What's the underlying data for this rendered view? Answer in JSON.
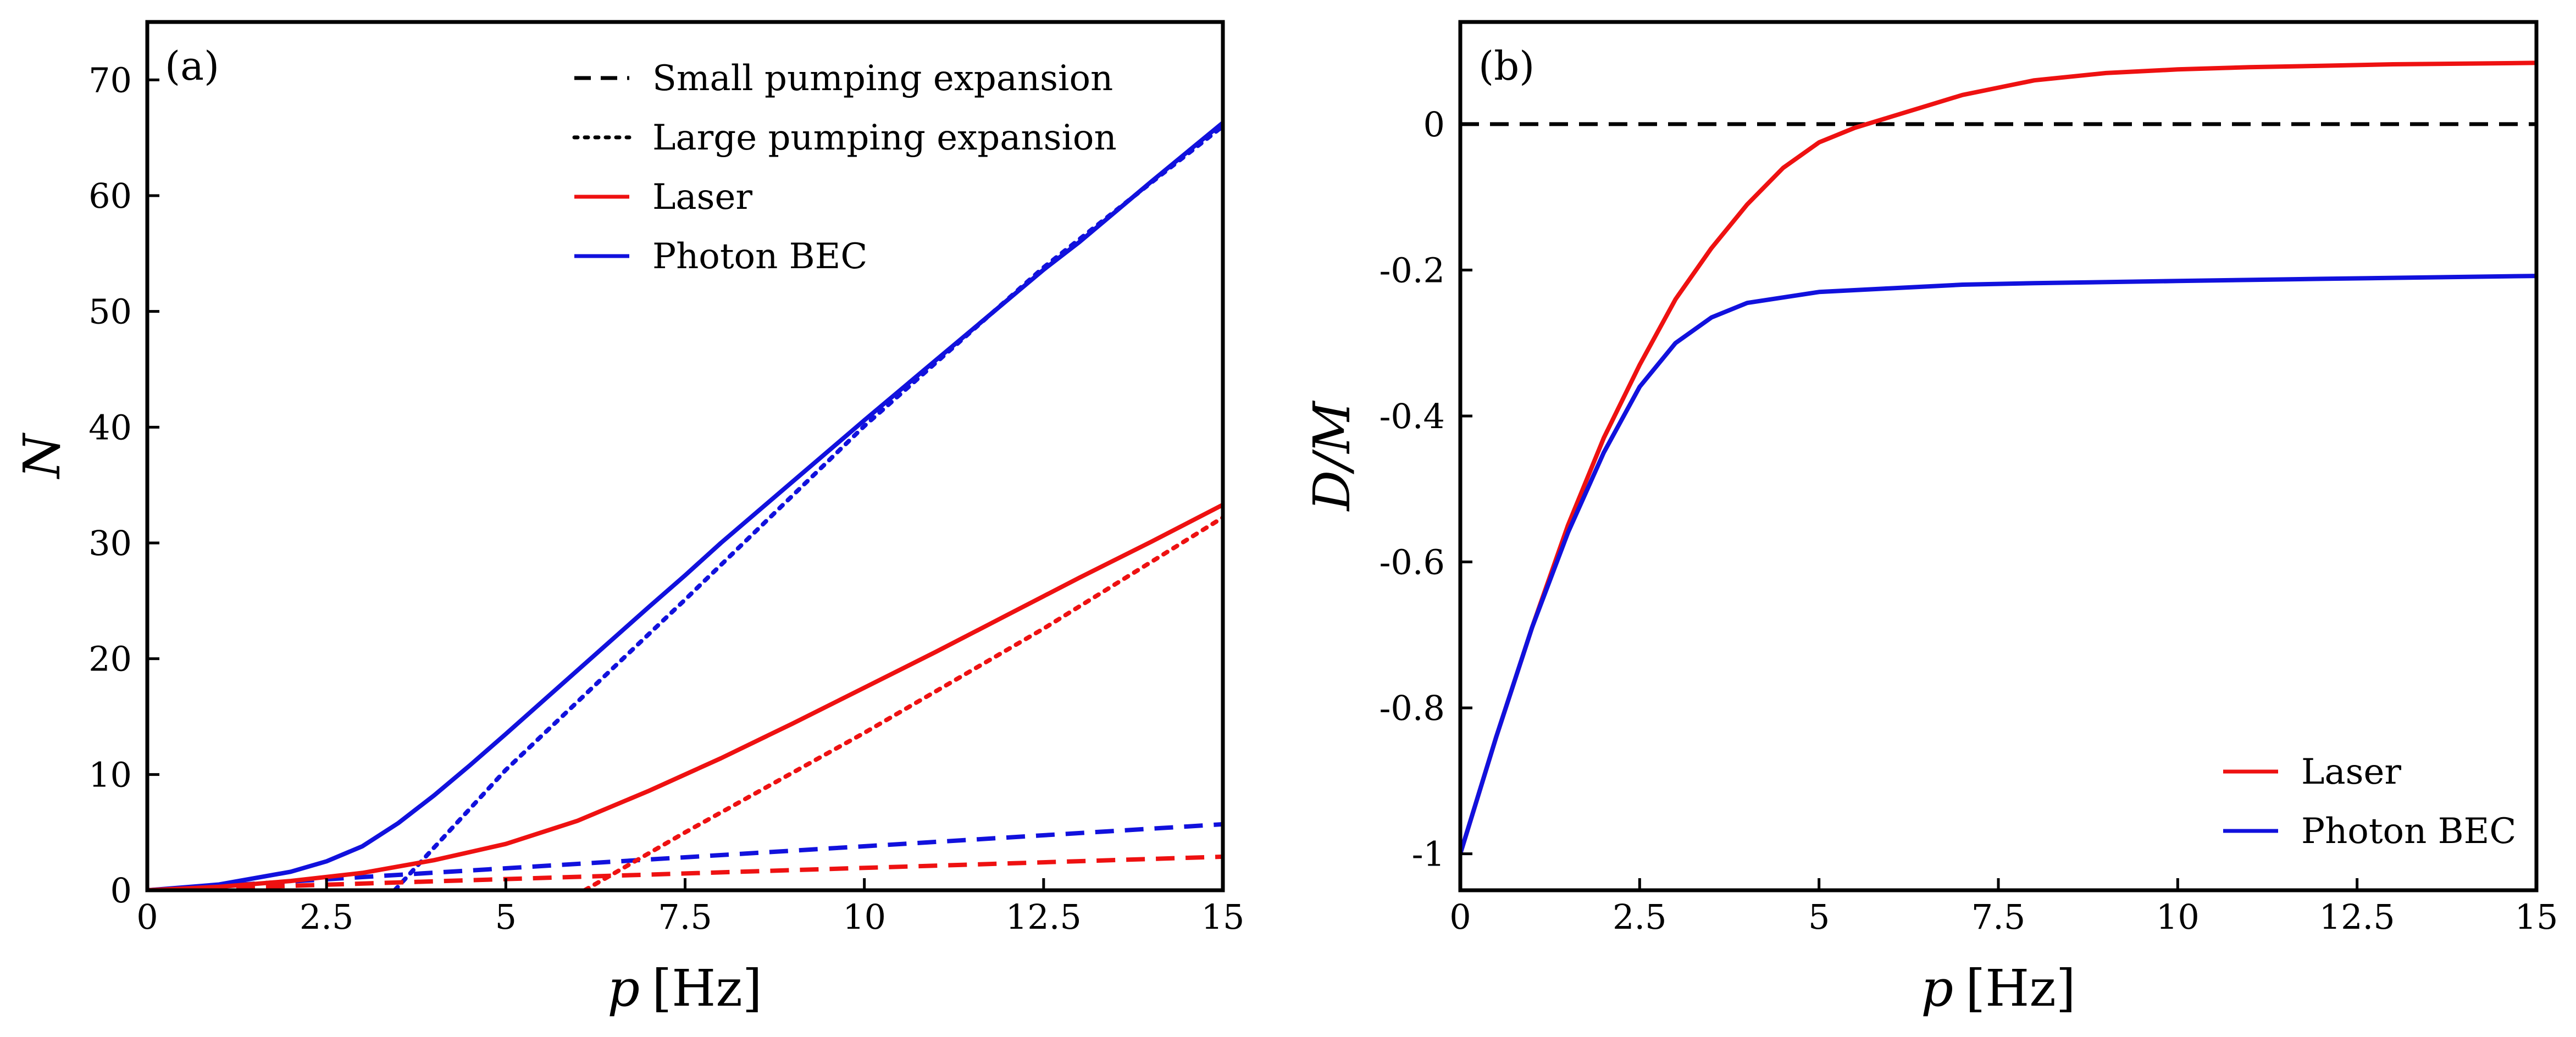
{
  "chart_data": [
    {
      "type": "line",
      "panel_label": "(a)",
      "xlabel_var": "p",
      "xlabel_unit": "[Hz]",
      "ylabel_var": "N",
      "xlim": [
        0,
        15
      ],
      "ylim": [
        0,
        75
      ],
      "xticks": [
        0,
        2.5,
        5,
        7.5,
        10,
        12.5,
        15
      ],
      "xtick_labels": [
        "0",
        "2.5",
        "5",
        "7.5",
        "10",
        "12.5",
        "15"
      ],
      "yticks": [
        0,
        10,
        20,
        30,
        40,
        50,
        60,
        70
      ],
      "ytick_labels": [
        "0",
        "10",
        "20",
        "30",
        "40",
        "50",
        "60",
        "70"
      ],
      "legend_position": "top-right",
      "legend": [
        {
          "label": "Small pumping expansion",
          "color": "#000000",
          "style": "dashed"
        },
        {
          "label": "Large pumping expansion",
          "color": "#000000",
          "style": "dotted"
        },
        {
          "label": "Laser",
          "color": "#ee1111",
          "style": "solid"
        },
        {
          "label": "Photon BEC",
          "color": "#1111dd",
          "style": "solid"
        }
      ],
      "series": [
        {
          "name": "Photon BEC",
          "color": "#1111dd",
          "style": "solid",
          "x": [
            0,
            1,
            2,
            2.5,
            3,
            3.5,
            4,
            4.5,
            5,
            6,
            7,
            7.5,
            8,
            9,
            10,
            11,
            12,
            12.5,
            13,
            14,
            15
          ],
          "y": [
            0,
            0.5,
            1.6,
            2.5,
            3.8,
            5.8,
            8.2,
            10.8,
            13.5,
            19.0,
            24.5,
            27.2,
            30.0,
            35.3,
            40.6,
            45.8,
            51.0,
            53.6,
            56.0,
            61.2,
            66.3
          ]
        },
        {
          "name": "Photon BEC large pumping",
          "color": "#1111dd",
          "style": "dotted",
          "x": [
            3.45,
            5,
            7.5,
            10,
            12.5,
            15
          ],
          "y": [
            0,
            10.4,
            25.1,
            40.1,
            53.8,
            66.0
          ]
        },
        {
          "name": "Photon BEC small pumping",
          "color": "#1111dd",
          "style": "dashed",
          "x": [
            0,
            15
          ],
          "y": [
            0,
            5.7
          ]
        },
        {
          "name": "Laser",
          "color": "#ee1111",
          "style": "solid",
          "x": [
            0,
            1,
            2,
            3,
            4,
            5,
            6,
            7,
            7.5,
            8,
            9,
            10,
            11,
            12,
            12.5,
            13,
            14,
            15
          ],
          "y": [
            0,
            0.3,
            0.8,
            1.5,
            2.6,
            4.0,
            6.0,
            8.6,
            10.0,
            11.4,
            14.4,
            17.5,
            20.6,
            23.8,
            25.4,
            27.0,
            30.1,
            33.3
          ]
        },
        {
          "name": "Laser large pumping",
          "color": "#ee1111",
          "style": "dotted",
          "x": [
            6.1,
            7.5,
            10,
            12.5,
            15
          ],
          "y": [
            0,
            5.0,
            13.6,
            22.6,
            32.2
          ]
        },
        {
          "name": "Laser small pumping",
          "color": "#ee1111",
          "style": "dashed",
          "x": [
            0,
            15
          ],
          "y": [
            0,
            2.9
          ]
        }
      ]
    },
    {
      "type": "line",
      "panel_label": "(b)",
      "xlabel_var": "p",
      "xlabel_unit": "[Hz]",
      "ylabel_var": "D/M",
      "xlim": [
        0,
        15
      ],
      "ylim": [
        -1.05,
        0.14
      ],
      "xticks": [
        0,
        2.5,
        5,
        7.5,
        10,
        12.5,
        15
      ],
      "xtick_labels": [
        "0",
        "2.5",
        "5",
        "7.5",
        "10",
        "12.5",
        "15"
      ],
      "yticks": [
        0,
        -0.2,
        -0.4,
        -0.6,
        -0.8,
        -1
      ],
      "ytick_labels": [
        "0",
        "-0.2",
        "-0.4",
        "-0.6",
        "-0.8",
        "-1"
      ],
      "reference_line": {
        "y": 0,
        "color": "#000000",
        "style": "dashed"
      },
      "legend_position": "bottom-right",
      "legend": [
        {
          "label": "Laser",
          "color": "#ee1111",
          "style": "solid"
        },
        {
          "label": "Photon BEC",
          "color": "#1111dd",
          "style": "solid"
        }
      ],
      "series": [
        {
          "name": "Laser",
          "color": "#ee1111",
          "style": "solid",
          "x": [
            0,
            0.5,
            1,
            1.5,
            2,
            2.5,
            3,
            3.5,
            4,
            4.5,
            5,
            5.5,
            6,
            6.5,
            7,
            7.5,
            8,
            9,
            10,
            11,
            12,
            13,
            14,
            15
          ],
          "y": [
            -1.0,
            -0.84,
            -0.69,
            -0.55,
            -0.43,
            -0.33,
            -0.24,
            -0.17,
            -0.11,
            -0.06,
            -0.025,
            -0.005,
            0.01,
            0.025,
            0.04,
            0.05,
            0.06,
            0.07,
            0.075,
            0.078,
            0.08,
            0.082,
            0.083,
            0.084
          ]
        },
        {
          "name": "Photon BEC",
          "color": "#1111dd",
          "style": "solid",
          "x": [
            0,
            0.5,
            1,
            1.5,
            2,
            2.5,
            3,
            3.5,
            4,
            5,
            6,
            7,
            8,
            10,
            12,
            15
          ],
          "y": [
            -1.0,
            -0.84,
            -0.69,
            -0.56,
            -0.45,
            -0.36,
            -0.3,
            -0.265,
            -0.245,
            -0.23,
            -0.225,
            -0.22,
            -0.218,
            -0.215,
            -0.212,
            -0.208
          ]
        }
      ]
    }
  ]
}
